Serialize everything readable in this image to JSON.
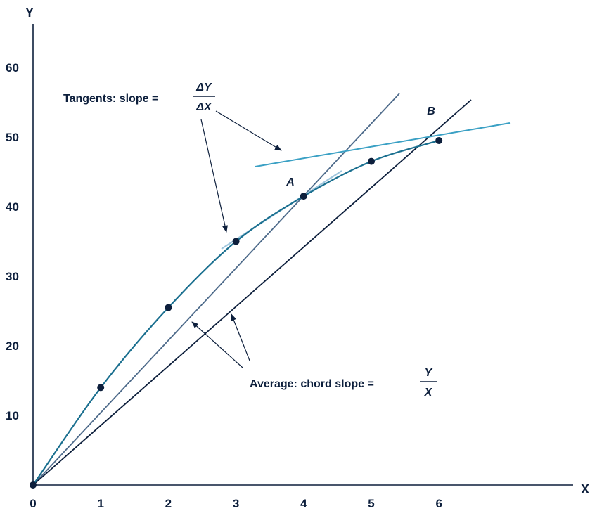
{
  "chart_data": {
    "type": "line",
    "title": "",
    "xlabel": "X",
    "ylabel": "Y",
    "xlim": [
      0,
      6
    ],
    "ylim": [
      0,
      60
    ],
    "x_ticks": [
      "0",
      "1",
      "2",
      "3",
      "4",
      "5",
      "6"
    ],
    "y_ticks": [
      "10",
      "20",
      "30",
      "40",
      "50",
      "60"
    ],
    "grid": false,
    "series": [
      {
        "x": [
          0,
          1,
          2,
          3,
          4,
          5,
          6
        ],
        "y": [
          0,
          14,
          25.5,
          35,
          41.5,
          46.5,
          49.5
        ],
        "color": "#1a6f8f"
      }
    ],
    "points": [
      {
        "label": "A",
        "x": 4,
        "y": 41.5
      },
      {
        "label": "B",
        "x": 6,
        "y": 49.5
      }
    ],
    "annotations": {
      "tangent_text": "Tangents: slope =",
      "tangent_num": "ΔY",
      "tangent_den": "ΔX",
      "chord_text": "Average: chord slope =",
      "chord_num": "Y",
      "chord_den": "X"
    },
    "colors": {
      "curve": "#1a6f8f",
      "chord_steep": "#4d6a8a",
      "chord_flat": "#0d1f3c",
      "tangent_a": "#9ec5dd",
      "tangent_b": "#3aa0c4",
      "text": "#0d1f3c"
    }
  }
}
